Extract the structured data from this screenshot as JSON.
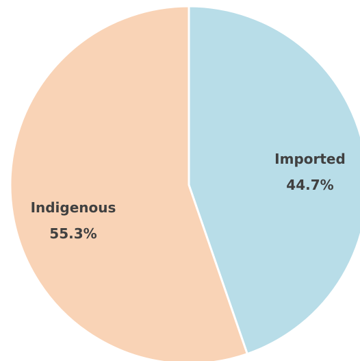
{
  "chart_data": {
    "type": "pie",
    "title": "",
    "categories": [
      "Imported",
      "Indigenous"
    ],
    "values": [
      44.7,
      55.3
    ],
    "data_labels": [
      "44.7%",
      "55.3%"
    ],
    "colors": [
      "#b8dde8",
      "#f9d3b6"
    ],
    "slice_border_color": "#ffffff",
    "start_angle": "12 o'clock, clockwise",
    "legend": "none"
  }
}
